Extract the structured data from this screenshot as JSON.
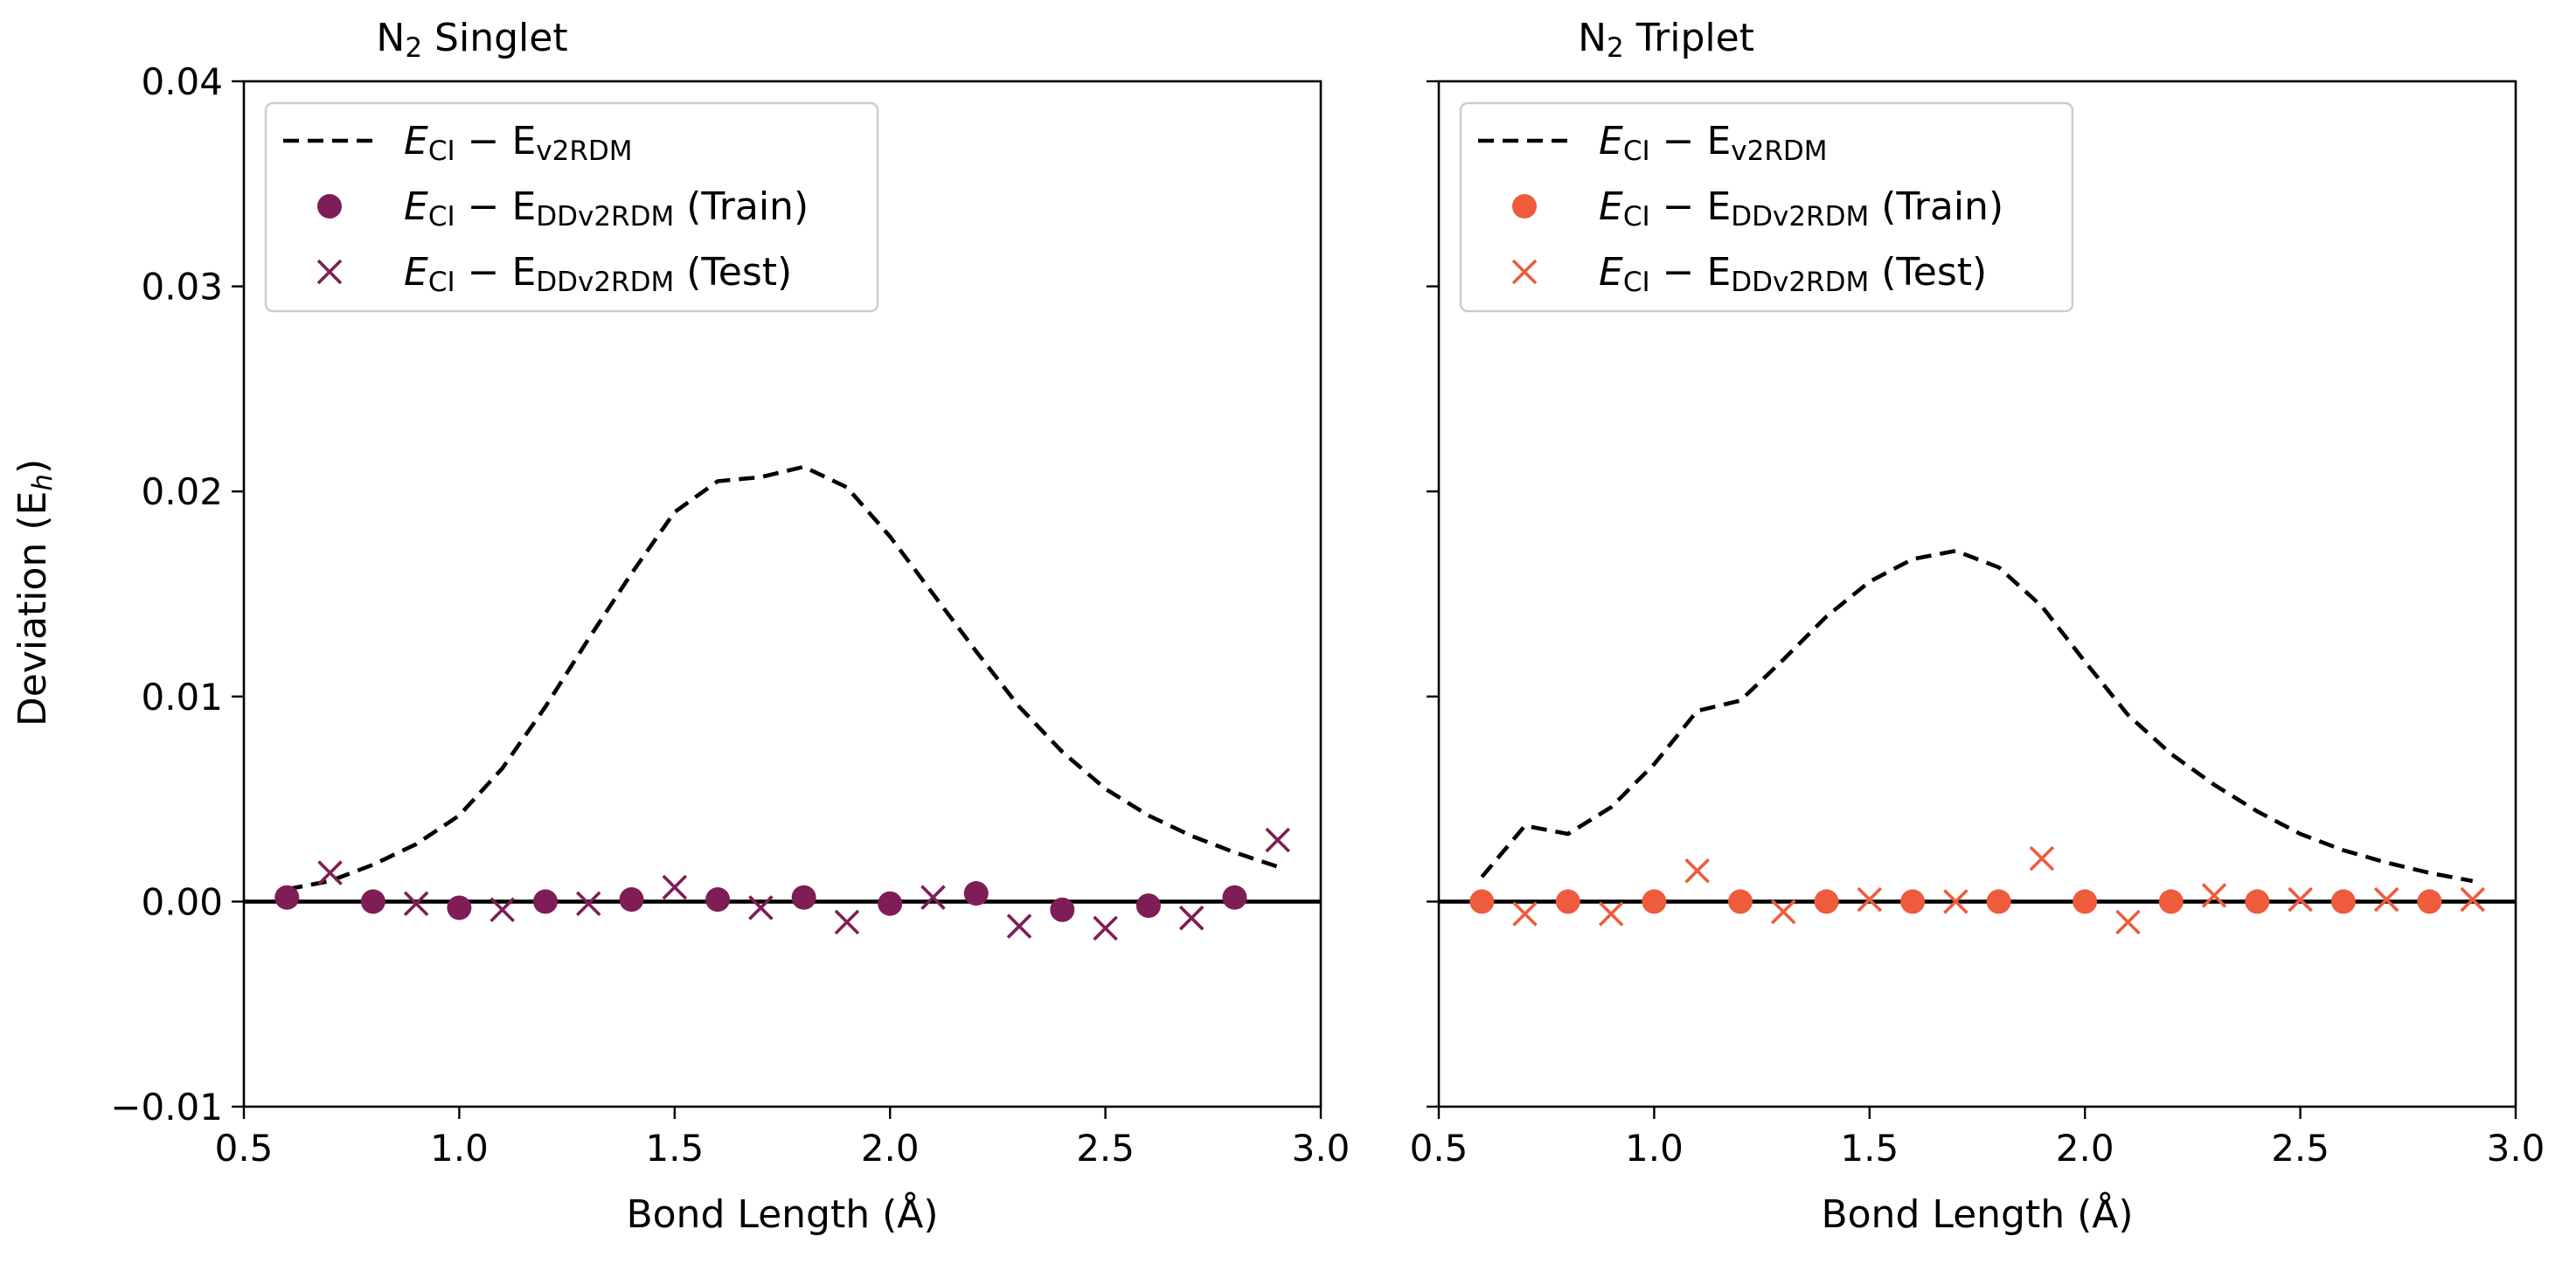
{
  "colors": {
    "singlet": "#7f1d56",
    "triplet": "#ee5b3d",
    "reference": "#000000"
  },
  "y_axis": {
    "label_main": "Deviation (E",
    "label_sub": "h",
    "label_close": ")",
    "tick_labels": [
      "0.04",
      "0.03",
      "0.02",
      "0.01",
      "0.00",
      "−0.01"
    ]
  },
  "chart_data": [
    {
      "type": "line+scatter",
      "id": "singlet",
      "title_main": "N",
      "title_sub": "2",
      "title_rest": " Singlet",
      "xlabel": "Bond Length (Å)",
      "ylabel": "Deviation (Eh)",
      "xlim": [
        0.5,
        3.0
      ],
      "ylim": [
        -0.01,
        0.04
      ],
      "x_tick_labels": [
        "0.5",
        "1.0",
        "1.5",
        "2.0",
        "2.5",
        "3.0"
      ],
      "legend_position": "upper-left",
      "legend": [
        {
          "marker": "dashed-line",
          "main": "E",
          "sub1": "CI",
          "minus": " − E",
          "sub2": "v2RDM",
          "suffix": ""
        },
        {
          "marker": "circle",
          "main": "E",
          "sub1": "CI",
          "minus": " − E",
          "sub2": "DDv2RDM",
          "suffix": " (Train)"
        },
        {
          "marker": "cross",
          "main": "E",
          "sub1": "CI",
          "minus": " − E",
          "sub2": "DDv2RDM",
          "suffix": " (Test)"
        }
      ],
      "series": [
        {
          "name": "E_CI - E_v2RDM",
          "style": "dashed",
          "x": [
            0.6,
            0.7,
            0.8,
            0.9,
            1.0,
            1.1,
            1.2,
            1.3,
            1.4,
            1.5,
            1.6,
            1.7,
            1.8,
            1.9,
            2.0,
            2.1,
            2.2,
            2.3,
            2.4,
            2.5,
            2.6,
            2.7,
            2.8,
            2.9
          ],
          "y": [
            0.0006,
            0.001,
            0.0018,
            0.0028,
            0.0042,
            0.0065,
            0.0095,
            0.0128,
            0.016,
            0.019,
            0.0205,
            0.0207,
            0.0212,
            0.0202,
            0.0178,
            0.015,
            0.0122,
            0.0095,
            0.0073,
            0.0055,
            0.0042,
            0.0032,
            0.0024,
            0.0017
          ]
        },
        {
          "name": "E_CI - E_DDv2RDM (Train)",
          "style": "circle",
          "x": [
            0.6,
            0.8,
            1.0,
            1.2,
            1.4,
            1.6,
            1.8,
            2.0,
            2.2,
            2.4,
            2.6,
            2.8
          ],
          "y": [
            0.0002,
            0.0,
            -0.0003,
            0.0,
            0.0001,
            0.0001,
            0.0002,
            -0.0001,
            0.0004,
            -0.0004,
            -0.0002,
            0.0002
          ]
        },
        {
          "name": "E_CI - E_DDv2RDM (Test)",
          "style": "cross",
          "x": [
            0.7,
            0.9,
            1.1,
            1.3,
            1.5,
            1.7,
            1.9,
            2.1,
            2.3,
            2.5,
            2.7,
            2.9
          ],
          "y": [
            0.0014,
            -0.0001,
            -0.0004,
            -0.0001,
            0.0007,
            -0.0003,
            -0.001,
            0.0002,
            -0.0012,
            -0.0013,
            -0.0008,
            0.003
          ]
        }
      ]
    },
    {
      "type": "line+scatter",
      "id": "triplet",
      "title_main": "N",
      "title_sub": "2",
      "title_rest": " Triplet",
      "xlabel": "Bond Length (Å)",
      "ylabel": "",
      "xlim": [
        0.5,
        3.0
      ],
      "ylim": [
        -0.01,
        0.04
      ],
      "x_tick_labels": [
        "0.5",
        "1.0",
        "1.5",
        "2.0",
        "2.5",
        "3.0"
      ],
      "legend_position": "upper-left",
      "legend": [
        {
          "marker": "dashed-line",
          "main": "E",
          "sub1": "CI",
          "minus": " − E",
          "sub2": "v2RDM",
          "suffix": ""
        },
        {
          "marker": "circle",
          "main": "E",
          "sub1": "CI",
          "minus": " − E",
          "sub2": "DDv2RDM",
          "suffix": " (Train)"
        },
        {
          "marker": "cross",
          "main": "E",
          "sub1": "CI",
          "minus": " − E",
          "sub2": "DDv2RDM",
          "suffix": " (Test)"
        }
      ],
      "series": [
        {
          "name": "E_CI - E_v2RDM",
          "style": "dashed",
          "x": [
            0.6,
            0.7,
            0.8,
            0.9,
            1.0,
            1.1,
            1.2,
            1.3,
            1.4,
            1.5,
            1.6,
            1.7,
            1.8,
            1.9,
            2.0,
            2.1,
            2.2,
            2.3,
            2.4,
            2.5,
            2.6,
            2.7,
            2.8,
            2.9
          ],
          "y": [
            0.0012,
            0.0037,
            0.0033,
            0.0046,
            0.0067,
            0.0093,
            0.0098,
            0.0118,
            0.0139,
            0.0156,
            0.0167,
            0.0171,
            0.0163,
            0.0144,
            0.0117,
            0.0091,
            0.0072,
            0.0057,
            0.0044,
            0.0033,
            0.0025,
            0.0019,
            0.0014,
            0.001
          ]
        },
        {
          "name": "E_CI - E_DDv2RDM (Train)",
          "style": "circle",
          "x": [
            0.6,
            0.8,
            1.0,
            1.2,
            1.4,
            1.6,
            1.8,
            2.0,
            2.2,
            2.4,
            2.6,
            2.8
          ],
          "y": [
            0.0,
            0.0,
            0.0,
            0.0,
            0.0,
            0.0,
            0.0,
            0.0,
            0.0,
            0.0,
            0.0,
            0.0
          ]
        },
        {
          "name": "E_CI - E_DDv2RDM (Test)",
          "style": "cross",
          "x": [
            0.7,
            0.9,
            1.1,
            1.3,
            1.5,
            1.7,
            1.9,
            2.1,
            2.3,
            2.5,
            2.7,
            2.9
          ],
          "y": [
            -0.0006,
            -0.0006,
            0.0015,
            -0.0005,
            0.0001,
            0.0,
            0.0021,
            -0.001,
            0.0003,
            0.0001,
            0.0001,
            0.0001
          ]
        }
      ]
    }
  ]
}
